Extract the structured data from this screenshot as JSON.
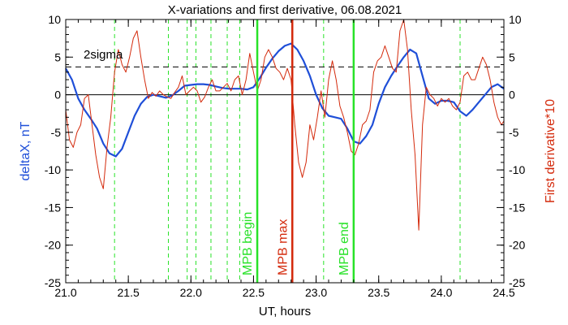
{
  "chart_data": {
    "type": "line",
    "title": "X-variations and first derivative, 06.08.2021",
    "xlabel": "UT, hours",
    "ylabel_left": "deltaX, nT",
    "ylabel_right": "First derivative*10",
    "xlim": [
      21.0,
      24.5
    ],
    "ylim": [
      -25,
      10
    ],
    "x_ticks": [
      "21.0",
      "21.5",
      "22.0",
      "22.5",
      "23.0",
      "23.5",
      "24.0",
      "24.5"
    ],
    "y_ticks": [
      "10",
      "5",
      "0",
      "-5",
      "-10",
      "-15",
      "-20",
      "-25"
    ],
    "colors": {
      "deltaX": "#1f4fd8",
      "derivative": "#d42a0c",
      "markers_green": "#28e228",
      "marker_red": "#d42a0c",
      "axis_left_label": "#1f4fd8",
      "axis_right_label": "#d42a0c"
    },
    "threshold": {
      "label": "2sigma",
      "value": 3.7
    },
    "zero_line": 0,
    "dashed_markers_x": [
      21.39,
      21.82,
      21.97,
      22.04,
      22.16,
      22.29,
      22.39,
      23.06,
      24.15
    ],
    "events": [
      {
        "label": "MPB begin",
        "x": 22.53,
        "color": "#28e228"
      },
      {
        "label": "MPB max",
        "x": 22.81,
        "color": "#d42a0c"
      },
      {
        "label": "MPB end",
        "x": 23.3,
        "color": "#28e228"
      }
    ],
    "series": [
      {
        "name": "deltaX",
        "axis": "left",
        "x": [
          21.0,
          21.05,
          21.1,
          21.15,
          21.2,
          21.25,
          21.3,
          21.35,
          21.4,
          21.45,
          21.5,
          21.55,
          21.6,
          21.65,
          21.7,
          21.75,
          21.8,
          21.85,
          21.9,
          21.95,
          22.0,
          22.05,
          22.1,
          22.15,
          22.2,
          22.25,
          22.3,
          22.35,
          22.4,
          22.45,
          22.5,
          22.55,
          22.6,
          22.65,
          22.7,
          22.75,
          22.8,
          22.85,
          22.9,
          22.95,
          23.0,
          23.05,
          23.1,
          23.15,
          23.2,
          23.25,
          23.3,
          23.35,
          23.4,
          23.45,
          23.5,
          23.55,
          23.6,
          23.65,
          23.7,
          23.75,
          23.8,
          23.85,
          23.9,
          23.95,
          24.0,
          24.05,
          24.1,
          24.15,
          24.2,
          24.25,
          24.3,
          24.35,
          24.4,
          24.45,
          24.5
        ],
        "y": [
          3.5,
          2.0,
          -0.5,
          -2.0,
          -3.2,
          -4.5,
          -6.5,
          -7.8,
          -8.2,
          -7.2,
          -5.0,
          -2.8,
          -1.2,
          -0.3,
          0.0,
          -0.2,
          -0.4,
          -0.1,
          0.5,
          1.2,
          1.3,
          1.4,
          1.4,
          1.3,
          1.1,
          0.9,
          0.8,
          0.8,
          0.8,
          0.7,
          1.0,
          2.2,
          3.6,
          4.8,
          5.8,
          6.5,
          6.8,
          6.0,
          4.5,
          2.5,
          0.0,
          -1.8,
          -2.8,
          -3.0,
          -3.2,
          -4.5,
          -6.2,
          -6.5,
          -5.5,
          -4.0,
          -1.2,
          1.0,
          2.5,
          3.8,
          5.0,
          6.0,
          5.5,
          2.5,
          -0.5,
          -1.2,
          -0.8,
          -0.8,
          -1.0,
          -2.2,
          -2.8,
          -2.0,
          -1.0,
          0.0,
          1.0,
          1.4,
          0.8
        ]
      },
      {
        "name": "First derivative*10",
        "axis": "right",
        "x": [
          21.0,
          21.03,
          21.06,
          21.09,
          21.12,
          21.15,
          21.18,
          21.21,
          21.24,
          21.27,
          21.3,
          21.33,
          21.36,
          21.39,
          21.42,
          21.45,
          21.48,
          21.51,
          21.54,
          21.57,
          21.6,
          21.63,
          21.66,
          21.69,
          21.72,
          21.75,
          21.78,
          21.81,
          21.84,
          21.87,
          21.9,
          21.93,
          21.96,
          21.99,
          22.02,
          22.05,
          22.08,
          22.11,
          22.14,
          22.17,
          22.2,
          22.23,
          22.26,
          22.29,
          22.32,
          22.35,
          22.38,
          22.41,
          22.44,
          22.47,
          22.5,
          22.53,
          22.56,
          22.59,
          22.62,
          22.65,
          22.68,
          22.71,
          22.74,
          22.77,
          22.8,
          22.83,
          22.86,
          22.89,
          22.92,
          22.95,
          22.98,
          23.01,
          23.04,
          23.07,
          23.1,
          23.13,
          23.16,
          23.19,
          23.22,
          23.25,
          23.28,
          23.31,
          23.34,
          23.37,
          23.4,
          23.43,
          23.46,
          23.49,
          23.52,
          23.55,
          23.58,
          23.61,
          23.64,
          23.67,
          23.7,
          23.73,
          23.76,
          23.79,
          23.82,
          23.85,
          23.88,
          23.91,
          23.94,
          23.97,
          24.0,
          24.03,
          24.06,
          24.09,
          24.12,
          24.15,
          24.18,
          24.21,
          24.24,
          24.27,
          24.3,
          24.33,
          24.36,
          24.39,
          24.42,
          24.45,
          24.48,
          24.5
        ],
        "y": [
          -2.0,
          -6.0,
          -7.0,
          -5.0,
          -4.0,
          -0.5,
          0.0,
          -4.0,
          -8.0,
          -11.0,
          -12.5,
          -7.0,
          -3.0,
          3.0,
          6.0,
          4.0,
          3.0,
          5.0,
          7.5,
          8.5,
          5.0,
          2.0,
          -0.5,
          0.3,
          -0.2,
          0.5,
          0.0,
          -0.3,
          -0.5,
          0.3,
          1.0,
          2.5,
          0.0,
          0.5,
          1.0,
          0.5,
          -1.0,
          -0.3,
          1.0,
          2.0,
          0.5,
          0.5,
          1.0,
          1.5,
          0.5,
          2.0,
          2.5,
          0.0,
          2.0,
          5.5,
          3.0,
          0.5,
          2.0,
          5.0,
          6.0,
          5.0,
          3.5,
          3.0,
          2.0,
          3.5,
          2.0,
          -4.0,
          -9.0,
          -11.0,
          -9.0,
          -4.0,
          -6.0,
          -3.0,
          0.5,
          -3.0,
          2.0,
          4.5,
          2.0,
          -1.5,
          -3.0,
          -5.0,
          -7.5,
          -8.0,
          -6.5,
          -4.0,
          -3.5,
          -2.0,
          3.0,
          4.5,
          5.0,
          6.5,
          5.0,
          3.5,
          3.0,
          8.5,
          10.0,
          6.0,
          -2.0,
          -8.0,
          -18.0,
          -4.0,
          1.0,
          0.0,
          -0.5,
          -1.5,
          -0.5,
          -1.0,
          -0.5,
          -1.5,
          -2.0,
          -1.0,
          2.5,
          3.0,
          2.0,
          2.0,
          3.5,
          5.0,
          4.0,
          2.0,
          -1.0,
          -3.0,
          -4.0,
          -3.5
        ]
      }
    ]
  }
}
